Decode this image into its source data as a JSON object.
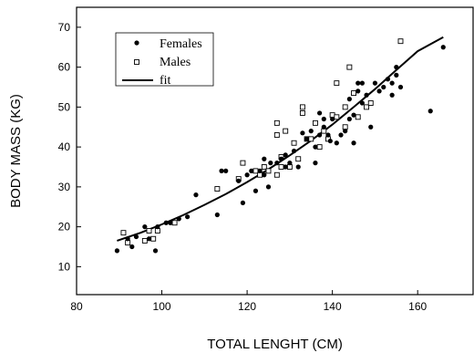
{
  "chart_data": {
    "type": "scatter",
    "title": "",
    "xlabel": "TOTAL LENGHT (CM)",
    "ylabel": "BODY MASS (KG)",
    "xlim": [
      80,
      173
    ],
    "ylim": [
      3,
      75
    ],
    "xticks": [
      80,
      100,
      120,
      140,
      160
    ],
    "yticks": [
      10,
      20,
      30,
      40,
      50,
      60,
      70
    ],
    "grid": false,
    "legend_position": "top-left",
    "series": [
      {
        "name": "Females",
        "marker": "filled-circle",
        "points": [
          [
            89.5,
            14
          ],
          [
            92,
            17
          ],
          [
            93,
            15
          ],
          [
            94,
            17.5
          ],
          [
            96,
            20
          ],
          [
            97,
            17
          ],
          [
            98.5,
            14
          ],
          [
            99,
            20
          ],
          [
            101,
            21
          ],
          [
            102,
            21
          ],
          [
            104,
            22
          ],
          [
            106,
            22.5
          ],
          [
            108,
            28
          ],
          [
            113,
            23
          ],
          [
            114,
            34
          ],
          [
            115,
            34
          ],
          [
            118,
            31.5
          ],
          [
            119,
            26
          ],
          [
            120,
            33
          ],
          [
            121,
            34
          ],
          [
            122,
            29
          ],
          [
            123,
            34
          ],
          [
            124,
            33
          ],
          [
            124,
            37
          ],
          [
            125,
            30
          ],
          [
            125.5,
            36
          ],
          [
            127,
            36
          ],
          [
            128,
            37
          ],
          [
            129,
            38
          ],
          [
            129,
            35
          ],
          [
            130,
            36
          ],
          [
            131,
            39
          ],
          [
            132,
            35
          ],
          [
            133,
            43.5
          ],
          [
            134,
            42
          ],
          [
            135,
            44
          ],
          [
            136,
            36
          ],
          [
            136,
            40
          ],
          [
            137,
            43
          ],
          [
            137,
            48.5
          ],
          [
            138,
            45
          ],
          [
            138,
            47
          ],
          [
            139,
            43
          ],
          [
            139.5,
            41.5
          ],
          [
            140,
            47
          ],
          [
            141,
            41
          ],
          [
            142,
            43
          ],
          [
            143,
            44
          ],
          [
            144,
            52
          ],
          [
            144,
            47
          ],
          [
            145,
            41
          ],
          [
            145,
            48
          ],
          [
            146,
            56
          ],
          [
            146,
            54
          ],
          [
            147,
            51
          ],
          [
            147,
            56
          ],
          [
            148,
            53
          ],
          [
            149,
            45
          ],
          [
            150,
            56
          ],
          [
            151,
            54
          ],
          [
            152,
            55
          ],
          [
            153,
            57
          ],
          [
            154,
            56
          ],
          [
            154,
            53
          ],
          [
            155,
            58
          ],
          [
            155,
            60
          ],
          [
            156,
            55
          ],
          [
            163,
            49
          ],
          [
            166,
            65
          ]
        ]
      },
      {
        "name": "Males",
        "marker": "open-square",
        "points": [
          [
            91,
            18.5
          ],
          [
            92,
            16
          ],
          [
            96,
            16.5
          ],
          [
            97,
            19
          ],
          [
            98,
            17
          ],
          [
            99,
            19
          ],
          [
            103,
            21
          ],
          [
            113,
            29.5
          ],
          [
            118,
            32
          ],
          [
            119,
            36
          ],
          [
            122,
            34
          ],
          [
            123,
            33
          ],
          [
            124,
            35
          ],
          [
            125,
            34
          ],
          [
            127,
            33
          ],
          [
            127,
            43
          ],
          [
            127,
            46
          ],
          [
            128,
            35
          ],
          [
            128,
            37.5
          ],
          [
            129,
            44
          ],
          [
            130,
            35
          ],
          [
            131,
            41
          ],
          [
            132,
            37
          ],
          [
            133,
            48.5
          ],
          [
            133,
            50
          ],
          [
            134,
            42
          ],
          [
            135,
            42
          ],
          [
            136,
            46
          ],
          [
            137,
            40
          ],
          [
            138,
            44
          ],
          [
            139,
            42
          ],
          [
            140,
            48
          ],
          [
            141,
            56
          ],
          [
            141,
            47.5
          ],
          [
            143,
            50
          ],
          [
            143,
            45
          ],
          [
            144,
            60
          ],
          [
            145,
            53.5
          ],
          [
            146,
            47.5
          ],
          [
            148,
            50
          ],
          [
            149,
            51
          ],
          [
            156,
            66.5
          ]
        ]
      },
      {
        "name": "fit",
        "kind": "line",
        "points": [
          [
            89.5,
            16.5
          ],
          [
            95,
            18.5
          ],
          [
            100,
            20.6
          ],
          [
            105,
            22.9
          ],
          [
            110,
            25.5
          ],
          [
            115,
            28.2
          ],
          [
            120,
            31.2
          ],
          [
            125,
            34.4
          ],
          [
            130,
            37.9
          ],
          [
            135,
            41.6
          ],
          [
            140,
            45.6
          ],
          [
            145,
            50.0
          ],
          [
            150,
            54.5
          ],
          [
            155,
            59.3
          ],
          [
            160,
            64.0
          ],
          [
            166,
            67.5
          ]
        ]
      }
    ],
    "colors": {
      "markers": "#000000",
      "axes": "#000000",
      "background": "#ffffff"
    }
  }
}
